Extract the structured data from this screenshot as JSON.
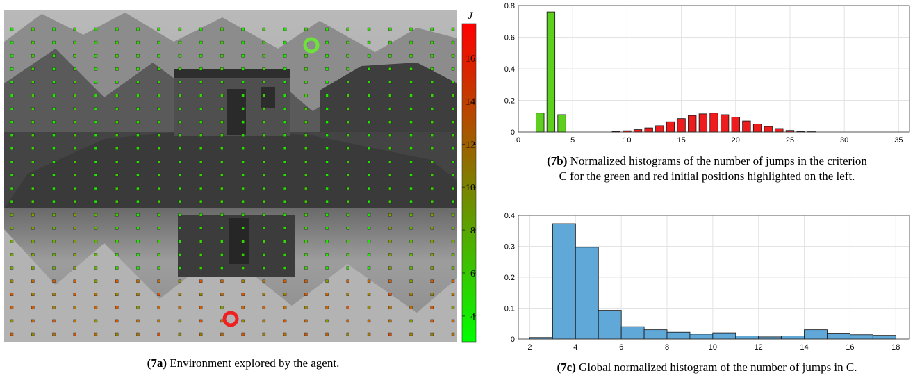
{
  "captions": {
    "a_tag": "(7a)",
    "a_text": "Environment explored by the agent.",
    "b_tag": "(7b)",
    "b_text": "Normalized histograms of the number of jumps in the criterion",
    "b_text2": "C for the green and red initial positions highlighted on the left.",
    "c_tag": "(7c)",
    "c_text": "Global normalized histogram of the number of jumps in C."
  },
  "colorbar": {
    "label": "J",
    "ticks": [
      "4",
      "6",
      "8",
      "10",
      "12",
      "14",
      "16"
    ],
    "colors": {
      "low": "#00ff00",
      "mid": "#7f7f00",
      "high": "#ff0000"
    }
  },
  "chart_data": [
    {
      "id": "7b",
      "type": "bar",
      "xlim": [
        0,
        36
      ],
      "ylim": [
        0,
        0.8
      ],
      "xticks": [
        "0",
        "5",
        "10",
        "15",
        "20",
        "25",
        "30",
        "35"
      ],
      "yticks": [
        "0",
        "0.2",
        "0.4",
        "0.6",
        "0.8"
      ],
      "grid": true,
      "series": [
        {
          "color": "#5ecf1f",
          "x": [
            2,
            3,
            4
          ],
          "values": [
            0.12,
            0.76,
            0.11
          ]
        },
        {
          "color": "#ee1c1c",
          "x": [
            9,
            10,
            11,
            12,
            13,
            14,
            15,
            16,
            17,
            18,
            19,
            20,
            21,
            22,
            23,
            24,
            25,
            26,
            27
          ],
          "values": [
            0.004,
            0.008,
            0.015,
            0.026,
            0.04,
            0.065,
            0.085,
            0.105,
            0.115,
            0.12,
            0.11,
            0.095,
            0.07,
            0.05,
            0.035,
            0.022,
            0.01,
            0.004,
            0.002
          ]
        }
      ]
    },
    {
      "id": "7c",
      "type": "bar",
      "xlim": [
        1.5,
        18.6
      ],
      "ylim": [
        0,
        0.4
      ],
      "xticks": [
        "2",
        "4",
        "6",
        "8",
        "10",
        "12",
        "14",
        "16",
        "18"
      ],
      "yticks": [
        "0",
        "0.1",
        "0.2",
        "0.3",
        "0.4"
      ],
      "grid": true,
      "series": [
        {
          "color": "#5fa8d8",
          "x": [
            2.5,
            3.5,
            4.5,
            5.5,
            6.5,
            7.5,
            8.5,
            9.5,
            10.5,
            11.5,
            12.5,
            13.5,
            14.5,
            15.5,
            16.5,
            17.5
          ],
          "values": [
            0.005,
            0.373,
            0.297,
            0.093,
            0.04,
            0.03,
            0.022,
            0.016,
            0.02,
            0.01,
            0.007,
            0.01,
            0.03,
            0.019,
            0.014,
            0.012
          ]
        }
      ]
    }
  ]
}
